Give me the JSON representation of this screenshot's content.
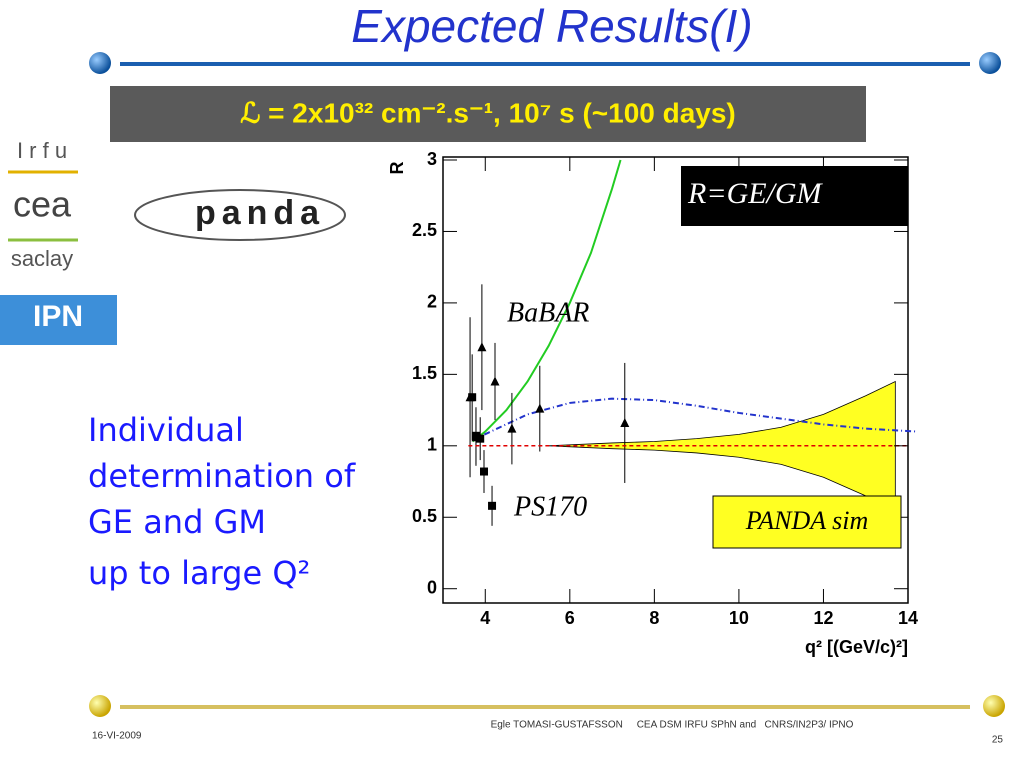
{
  "slide": {
    "title": "Expected Results(I)",
    "luminosity": "ℒ = 2x10³² cm⁻².s⁻¹, 10⁷ s (~100 days)",
    "logos": {
      "irfu": "I r f u",
      "cea": "cea",
      "saclay": "saclay",
      "panda": "panda",
      "ipn": "IPN"
    },
    "side_text": [
      "Individual",
      "determination of",
      "GE and GM",
      "up to large Q²"
    ],
    "footer": "Egle TOMASI-GUSTAFSSON     CEA DSM IRFU SPhN and   CNRS/IN2P3/ IPNO",
    "date": "16-VI-2009",
    "page": "25"
  },
  "chart_data": {
    "type": "scatter",
    "y_label": "R",
    "x_label": "q² [(GeV/c)²]",
    "annotations": [
      "R=GE/GM"
    ],
    "xlim": [
      3,
      14
    ],
    "xticks": [
      4,
      6,
      8,
      10,
      12,
      14
    ],
    "ylim": [
      -0.1,
      3
    ],
    "yticks": [
      0,
      0.5,
      1,
      1.5,
      2,
      2.5,
      3
    ],
    "reference_line": {
      "value": 1,
      "color": "#e00000"
    },
    "series": [
      {
        "name": "BaBAR",
        "type": "scatter",
        "marker": "triangle",
        "color": "#000000",
        "x": [
          3.64,
          3.78,
          3.92,
          4.23,
          4.63,
          5.29,
          7.3
        ],
        "values": [
          1.34,
          1.06,
          1.69,
          1.45,
          1.12,
          1.26,
          1.16
        ],
        "errors": [
          0.56,
          0.2,
          0.44,
          0.27,
          0.25,
          0.3,
          0.42
        ]
      },
      {
        "name": "PS170",
        "type": "scatter",
        "marker": "square",
        "color": "#000000",
        "x": [
          3.69,
          3.78,
          3.88,
          3.97,
          4.16
        ],
        "values": [
          1.34,
          1.07,
          1.05,
          0.82,
          0.58
        ],
        "errors": [
          0.3,
          0.2,
          0.15,
          0.15,
          0.14
        ]
      },
      {
        "type": "line",
        "color": "#22cc22",
        "dash": "none",
        "x": [
          3.7,
          4,
          4.5,
          5,
          5.5,
          6,
          6.5,
          7,
          7.2
        ],
        "values": [
          1.03,
          1.1,
          1.25,
          1.45,
          1.7,
          2.0,
          2.35,
          2.8,
          3.0
        ]
      },
      {
        "type": "line",
        "color": "#2233cc",
        "dash": "6 3 1 3",
        "x": [
          3.7,
          5,
          6,
          7,
          8,
          9,
          10,
          11,
          12,
          13,
          14.2
        ],
        "values": [
          1.04,
          1.22,
          1.3,
          1.33,
          1.32,
          1.28,
          1.23,
          1.19,
          1.15,
          1.12,
          1.1
        ]
      },
      {
        "name": "PANDA sim",
        "type": "band",
        "color": "#ffff22",
        "x": [
          5.5,
          7,
          8,
          9,
          10,
          11,
          12,
          13,
          13.7
        ],
        "upper": [
          1.0,
          1.02,
          1.03,
          1.05,
          1.08,
          1.13,
          1.22,
          1.35,
          1.45
        ],
        "lower": [
          1.0,
          0.98,
          0.97,
          0.95,
          0.92,
          0.87,
          0.78,
          0.65,
          0.55
        ]
      }
    ]
  }
}
